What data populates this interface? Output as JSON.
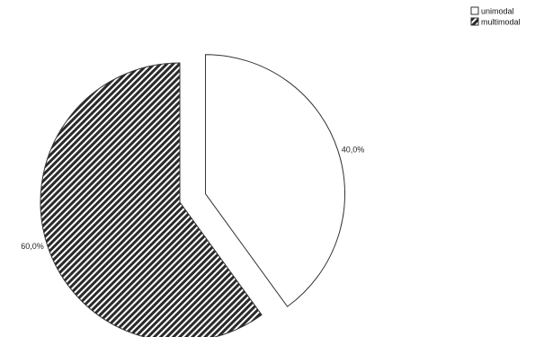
{
  "chart_data": {
    "type": "pie",
    "categories": [
      "unimodal",
      "multimodal"
    ],
    "values": [
      40.0,
      60.0
    ],
    "data_labels": [
      "40,0%",
      "60,0%"
    ],
    "exploded": [
      "unimodal"
    ],
    "fills": [
      "white",
      "diagonal-hatch"
    ],
    "legend": {
      "placement": "top-right",
      "entries": [
        "unimodal",
        "multimodal"
      ]
    },
    "colors": {
      "outline": "#333333",
      "hatch": "#2a2a2a",
      "background": "#ffffff"
    }
  }
}
